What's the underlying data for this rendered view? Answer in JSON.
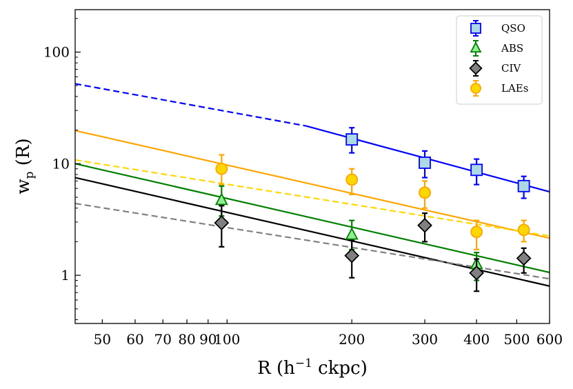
{
  "chart_data": {
    "type": "scatter",
    "xscale": "log",
    "yscale": "log",
    "xlim": [
      43,
      600
    ],
    "ylim": [
      0.37,
      240
    ],
    "xlabel_main": "R (h",
    "xlabel_sup": "−1",
    "xlabel_tail": " ckpc)",
    "ylabel_main": "w",
    "ylabel_sub": "p",
    "ylabel_tail": " (R)",
    "xticks": [
      {
        "value": 50,
        "label": "50"
      },
      {
        "value": 60,
        "label": "60"
      },
      {
        "value": 70,
        "label": "70"
      },
      {
        "value": 80,
        "label": "80"
      },
      {
        "value": 90,
        "label": "90"
      },
      {
        "value": 100,
        "label": "100"
      },
      {
        "value": 200,
        "label": "200"
      },
      {
        "value": 300,
        "label": "300"
      },
      {
        "value": 400,
        "label": "400"
      },
      {
        "value": 500,
        "label": "500"
      },
      {
        "value": 600,
        "label": "600"
      }
    ],
    "yticks": [
      {
        "value": 1,
        "label": "1"
      },
      {
        "value": 10,
        "label": "10"
      },
      {
        "value": 100,
        "label": "100"
      }
    ],
    "series": [
      {
        "name": "QSO",
        "marker": "square",
        "edge": "#0000ff",
        "face": "#add8e6",
        "points": [
          {
            "x": 200,
            "y": 16.5,
            "lo": 12.5,
            "hi": 21
          },
          {
            "x": 300,
            "y": 10.2,
            "lo": 7.5,
            "hi": 13
          },
          {
            "x": 400,
            "y": 8.8,
            "lo": 6.5,
            "hi": 11
          },
          {
            "x": 520,
            "y": 6.3,
            "lo": 4.9,
            "hi": 7.7
          }
        ]
      },
      {
        "name": "ABS",
        "marker": "triangle",
        "edge": "#008000",
        "face": "#90ee90",
        "points": [
          {
            "x": 97,
            "y": 4.7,
            "lo": 3.4,
            "hi": 6.3
          },
          {
            "x": 200,
            "y": 2.3,
            "lo": 1.7,
            "hi": 3.1
          },
          {
            "x": 400,
            "y": 1.25,
            "lo": 0.9,
            "hi": 1.6
          }
        ]
      },
      {
        "name": "CIV",
        "marker": "diamond",
        "edge": "#000000",
        "face": "#808080",
        "points": [
          {
            "x": 97,
            "y": 2.95,
            "lo": 1.8,
            "hi": 4.2
          },
          {
            "x": 200,
            "y": 1.5,
            "lo": 0.95,
            "hi": 2.05
          },
          {
            "x": 300,
            "y": 2.8,
            "lo": 2.0,
            "hi": 3.6
          },
          {
            "x": 400,
            "y": 1.05,
            "lo": 0.72,
            "hi": 1.4
          },
          {
            "x": 520,
            "y": 1.42,
            "lo": 1.05,
            "hi": 1.75
          }
        ]
      },
      {
        "name": "LAEs",
        "marker": "circle",
        "edge": "#ffa500",
        "face": "#ffd700",
        "points": [
          {
            "x": 97,
            "y": 9.0,
            "lo": 6.5,
            "hi": 12
          },
          {
            "x": 200,
            "y": 7.2,
            "lo": 5.3,
            "hi": 9.0
          },
          {
            "x": 300,
            "y": 5.5,
            "lo": 4.0,
            "hi": 7.0
          },
          {
            "x": 400,
            "y": 2.45,
            "lo": 1.7,
            "hi": 3.1
          },
          {
            "x": 520,
            "y": 2.55,
            "lo": 2.0,
            "hi": 3.1
          }
        ]
      }
    ],
    "fit_lines": [
      {
        "name": "qso-fit-dashed",
        "color": "#0000ff",
        "dash": true,
        "x": [
          43,
          155
        ],
        "y": [
          52,
          21.8
        ]
      },
      {
        "name": "qso-fit-solid",
        "color": "#0000ff",
        "dash": false,
        "x": [
          155,
          600
        ],
        "y": [
          21.8,
          5.6
        ]
      },
      {
        "name": "lae-fit",
        "color": "#ffa500",
        "dash": false,
        "x": [
          43,
          600
        ],
        "y": [
          19.8,
          2.15
        ]
      },
      {
        "name": "lae-fit-dashed",
        "color": "#ffd700",
        "dash": true,
        "x": [
          43,
          600
        ],
        "y": [
          10.8,
          2.25
        ]
      },
      {
        "name": "abs-fit",
        "color": "#008000",
        "dash": false,
        "x": [
          43,
          600
        ],
        "y": [
          10.0,
          1.06
        ]
      },
      {
        "name": "civ-fit",
        "color": "#000000",
        "dash": false,
        "x": [
          43,
          600
        ],
        "y": [
          7.5,
          0.8
        ]
      },
      {
        "name": "civ-fit-dashed",
        "color": "#808080",
        "dash": true,
        "x": [
          43,
          600
        ],
        "y": [
          4.4,
          0.93
        ]
      }
    ],
    "legend": {
      "position": "top-right",
      "entries": [
        "QSO",
        "ABS",
        "CIV",
        "LAEs"
      ]
    }
  }
}
